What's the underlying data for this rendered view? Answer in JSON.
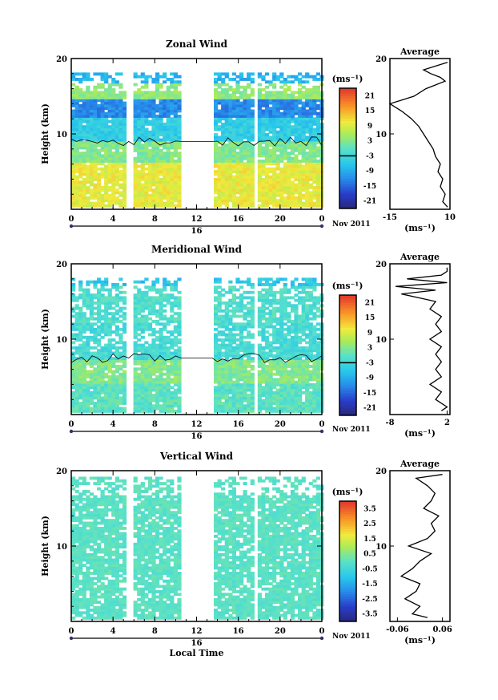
{
  "chart_data": [
    {
      "type": "heatmap",
      "title": "Zonal Wind",
      "xlabel": "",
      "ylabel": "Height (km)",
      "x_ticks": [
        "0",
        "4",
        "8",
        "12",
        "16",
        "20",
        "0"
      ],
      "date_label": "16",
      "month_label": "Nov 2011",
      "y_ticks": [
        "10",
        "20"
      ],
      "ylim": [
        0,
        20
      ],
      "xlim": [
        0,
        24
      ],
      "colorbar": {
        "unit": "(ms⁻¹)",
        "ticks": [
          "21",
          "15",
          "9",
          "3",
          "-3",
          "-9",
          "-15",
          "-21"
        ],
        "range": [
          -24,
          24
        ]
      },
      "data_gaps_hours": [
        [
          5.3,
          6.0
        ],
        [
          10.4,
          13.6
        ],
        [
          17.6,
          18.0
        ]
      ],
      "layers": [
        {
          "h_range": [
            0,
            6
          ],
          "approx_value": 10
        },
        {
          "h_range": [
            6,
            9
          ],
          "approx_value": 3
        },
        {
          "h_range": [
            9,
            12
          ],
          "approx_value": -5
        },
        {
          "h_range": [
            12,
            14.5
          ],
          "approx_value": -12
        },
        {
          "h_range": [
            14.5,
            16.5
          ],
          "approx_value": 4
        },
        {
          "h_range": [
            16.5,
            18
          ],
          "approx_value": -8
        }
      ],
      "average_profile": {
        "title": "Average",
        "xlabel": "(ms⁻¹)",
        "x_ticks": [
          "-15",
          "10"
        ],
        "xlim": [
          -15,
          10
        ],
        "y_ticks": [
          "10",
          "20"
        ],
        "height_km": [
          0.3,
          1,
          2,
          3,
          4,
          5,
          6,
          7,
          8,
          9,
          10,
          11,
          12,
          13,
          14,
          15,
          16,
          17,
          17.5,
          18,
          18.5,
          19,
          19.5
        ],
        "value": [
          9,
          7,
          8,
          6,
          7,
          5,
          6,
          4,
          3,
          1,
          -1,
          -3,
          -6,
          -10,
          -15,
          -5,
          0,
          8,
          6,
          2,
          -1,
          4,
          9
        ]
      }
    },
    {
      "type": "heatmap",
      "title": "Meridional Wind",
      "xlabel": "",
      "ylabel": "Height (km)",
      "x_ticks": [
        "0",
        "4",
        "8",
        "12",
        "16",
        "20",
        "0"
      ],
      "date_label": "16",
      "month_label": "Nov 2011",
      "y_ticks": [
        "10",
        "20"
      ],
      "ylim": [
        0,
        20
      ],
      "xlim": [
        0,
        24
      ],
      "colorbar": {
        "unit": "(ms⁻¹)",
        "ticks": [
          "21",
          "15",
          "9",
          "3",
          "-3",
          "-9",
          "-15",
          "-21"
        ],
        "range": [
          -24,
          24
        ]
      },
      "data_gaps_hours": [
        [
          5.3,
          6.0
        ],
        [
          10.4,
          13.6
        ],
        [
          17.6,
          18.0
        ]
      ],
      "layers": [
        {
          "h_range": [
            0,
            4
          ],
          "approx_value": 0
        },
        {
          "h_range": [
            4,
            7
          ],
          "approx_value": 3
        },
        {
          "h_range": [
            7,
            12
          ],
          "approx_value": -2
        },
        {
          "h_range": [
            12,
            17
          ],
          "approx_value": -1
        },
        {
          "h_range": [
            17,
            18
          ],
          "approx_value": -6
        }
      ],
      "average_profile": {
        "title": "Average",
        "xlabel": "(ms⁻¹)",
        "x_ticks": [
          "-8",
          "2"
        ],
        "xlim": [
          -8,
          2.5
        ],
        "y_ticks": [
          "10",
          "20"
        ],
        "height_km": [
          0.5,
          1,
          2,
          3,
          4,
          5,
          6,
          7,
          8,
          9,
          10,
          11,
          12,
          13,
          14,
          15,
          16,
          16.5,
          17,
          17.5,
          18,
          18.5,
          19,
          19.5
        ],
        "value": [
          1,
          2,
          0,
          1,
          -1,
          1,
          0,
          1,
          0,
          1,
          -1,
          1,
          0,
          1,
          -1,
          0,
          -6,
          0,
          -7,
          2,
          -5,
          1,
          2,
          2
        ]
      }
    },
    {
      "type": "heatmap",
      "title": "Vertical Wind",
      "xlabel": "Local Time",
      "ylabel": "Height (km)",
      "x_ticks": [
        "0",
        "4",
        "8",
        "12",
        "16",
        "20",
        "0"
      ],
      "date_label": "16",
      "month_label": "Nov 2011",
      "y_ticks": [
        "10",
        "20"
      ],
      "ylim": [
        0,
        20
      ],
      "xlim": [
        0,
        24
      ],
      "colorbar": {
        "unit": "(ms⁻¹)",
        "ticks": [
          "3.5",
          "2.5",
          "1.5",
          "0.5",
          "-0.5",
          "-1.5",
          "-2.5",
          "-3.5"
        ],
        "range": [
          -4,
          4
        ]
      },
      "data_gaps_hours": [
        [
          5.3,
          6.0
        ],
        [
          10.4,
          13.6
        ],
        [
          17.6,
          18.0
        ]
      ],
      "layers": [
        {
          "h_range": [
            0,
            19
          ],
          "approx_value": 0
        }
      ],
      "average_profile": {
        "title": "Average",
        "xlabel": "(ms⁻¹)",
        "x_ticks": [
          "-0.06",
          "0.06"
        ],
        "xlim": [
          -0.08,
          0.08
        ],
        "y_ticks": [
          "10",
          "20"
        ],
        "height_km": [
          0.5,
          1,
          2,
          3,
          4,
          5,
          6,
          7,
          8,
          9,
          10,
          11,
          12,
          13,
          14,
          15,
          16,
          17,
          18,
          19,
          19.5
        ],
        "value": [
          0.02,
          -0.02,
          0.0,
          -0.04,
          -0.01,
          0.0,
          -0.05,
          -0.02,
          0.0,
          0.03,
          -0.03,
          0.02,
          0.04,
          0.03,
          0.05,
          0.01,
          0.03,
          0.04,
          0.02,
          -0.01,
          0.06
        ]
      }
    }
  ]
}
